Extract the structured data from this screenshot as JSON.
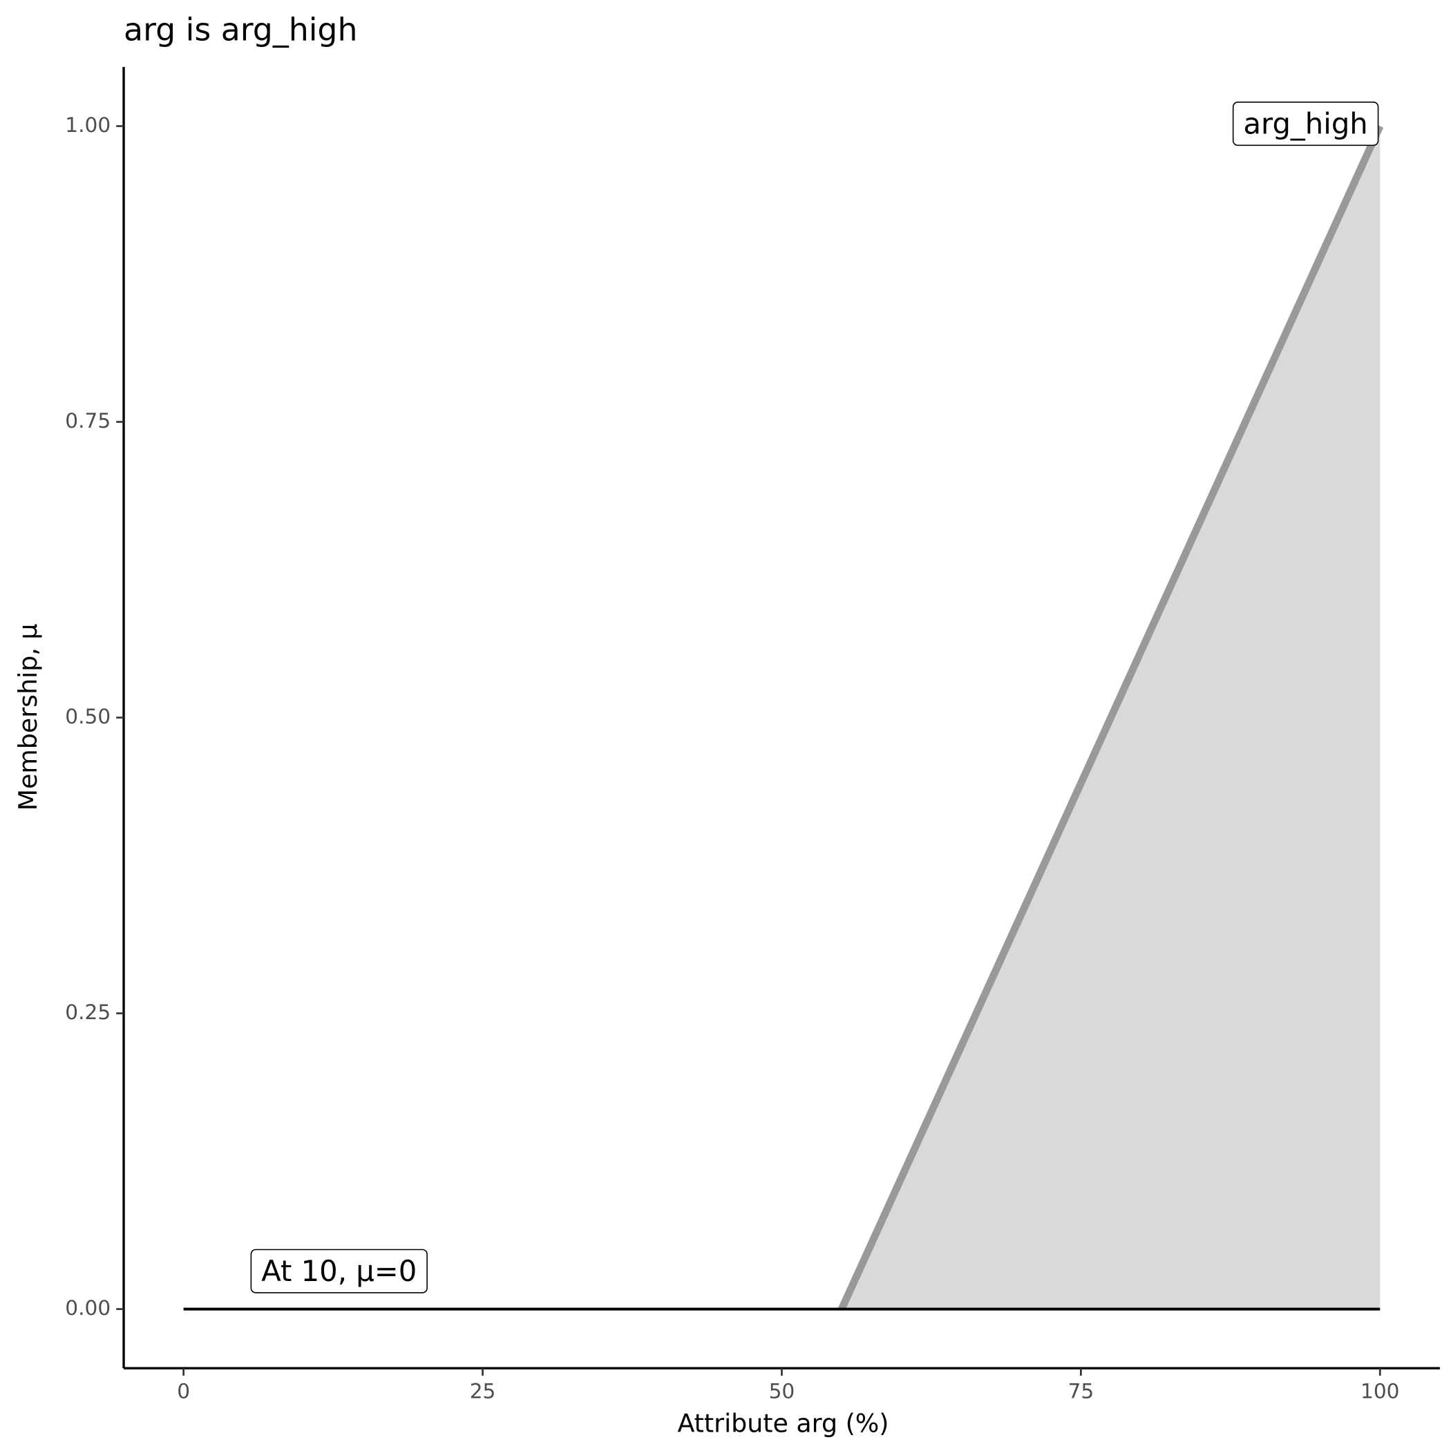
{
  "chart_data": {
    "type": "line",
    "title": "arg is arg_high",
    "x_label": "Attribute arg (%)",
    "y_label": "Membership, μ",
    "xlim": [
      -5,
      105
    ],
    "ylim": [
      -0.05,
      1.05
    ],
    "xticks": [
      0,
      25,
      50,
      75,
      100
    ],
    "yticks": [
      {
        "value": 0,
        "label": "0.00"
      },
      0.25,
      {
        "value": 0.5,
        "label": "0.50"
      },
      0.75,
      {
        "value": 1,
        "label": "1.00"
      }
    ],
    "series": [
      {
        "name": "arg_high",
        "color": "#999999",
        "fill": "#d9d9d9",
        "x": [
          55,
          100
        ],
        "values": [
          0,
          1
        ]
      },
      {
        "color": "#000000",
        "x": [
          0,
          100
        ],
        "values": [
          0,
          0
        ]
      }
    ],
    "annotations": [
      {
        "text": "arg_high",
        "x": 100,
        "y": 1,
        "anchor": "end"
      },
      {
        "text": "At 10, μ=0",
        "x": 13,
        "y": 0.03,
        "anchor": "middle"
      }
    ]
  }
}
